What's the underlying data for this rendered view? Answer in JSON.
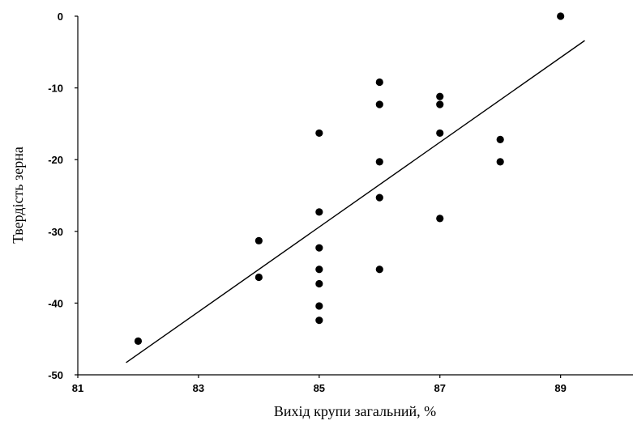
{
  "chart_data": {
    "type": "scatter",
    "title": "",
    "xlabel": "Вихід крупи загальний, %",
    "ylabel": "Твердість зерна",
    "xlim": [
      81,
      90.2
    ],
    "ylim": [
      -50,
      0
    ],
    "x_ticks": [
      "81",
      "83",
      "85",
      "87",
      "89"
    ],
    "y_ticks": [
      "0",
      "-10",
      "-20",
      "-30",
      "-40",
      "-50"
    ],
    "grid": false,
    "legend": "none",
    "marker_color": "#000000",
    "points": [
      {
        "x": 82,
        "y": -45.3
      },
      {
        "x": 84,
        "y": -31.3
      },
      {
        "x": 84,
        "y": -36.4
      },
      {
        "x": 85,
        "y": -16.3
      },
      {
        "x": 85,
        "y": -27.3
      },
      {
        "x": 85,
        "y": -32.3
      },
      {
        "x": 85,
        "y": -35.3
      },
      {
        "x": 85,
        "y": -37.3
      },
      {
        "x": 85,
        "y": -40.4
      },
      {
        "x": 85,
        "y": -42.4
      },
      {
        "x": 86,
        "y": -9.2
      },
      {
        "x": 86,
        "y": -12.3
      },
      {
        "x": 86,
        "y": -20.3
      },
      {
        "x": 86,
        "y": -25.3
      },
      {
        "x": 86,
        "y": -35.3
      },
      {
        "x": 87,
        "y": -11.2
      },
      {
        "x": 87,
        "y": -12.3
      },
      {
        "x": 87,
        "y": -16.3
      },
      {
        "x": 87,
        "y": -28.2
      },
      {
        "x": 88,
        "y": -17.2
      },
      {
        "x": 88,
        "y": -20.3
      },
      {
        "x": 89,
        "y": 0
      }
    ],
    "trendline": {
      "type": "linear",
      "from": {
        "x": 81.8,
        "y": -48.3
      },
      "to": {
        "x": 89.4,
        "y": -3.4
      }
    }
  }
}
